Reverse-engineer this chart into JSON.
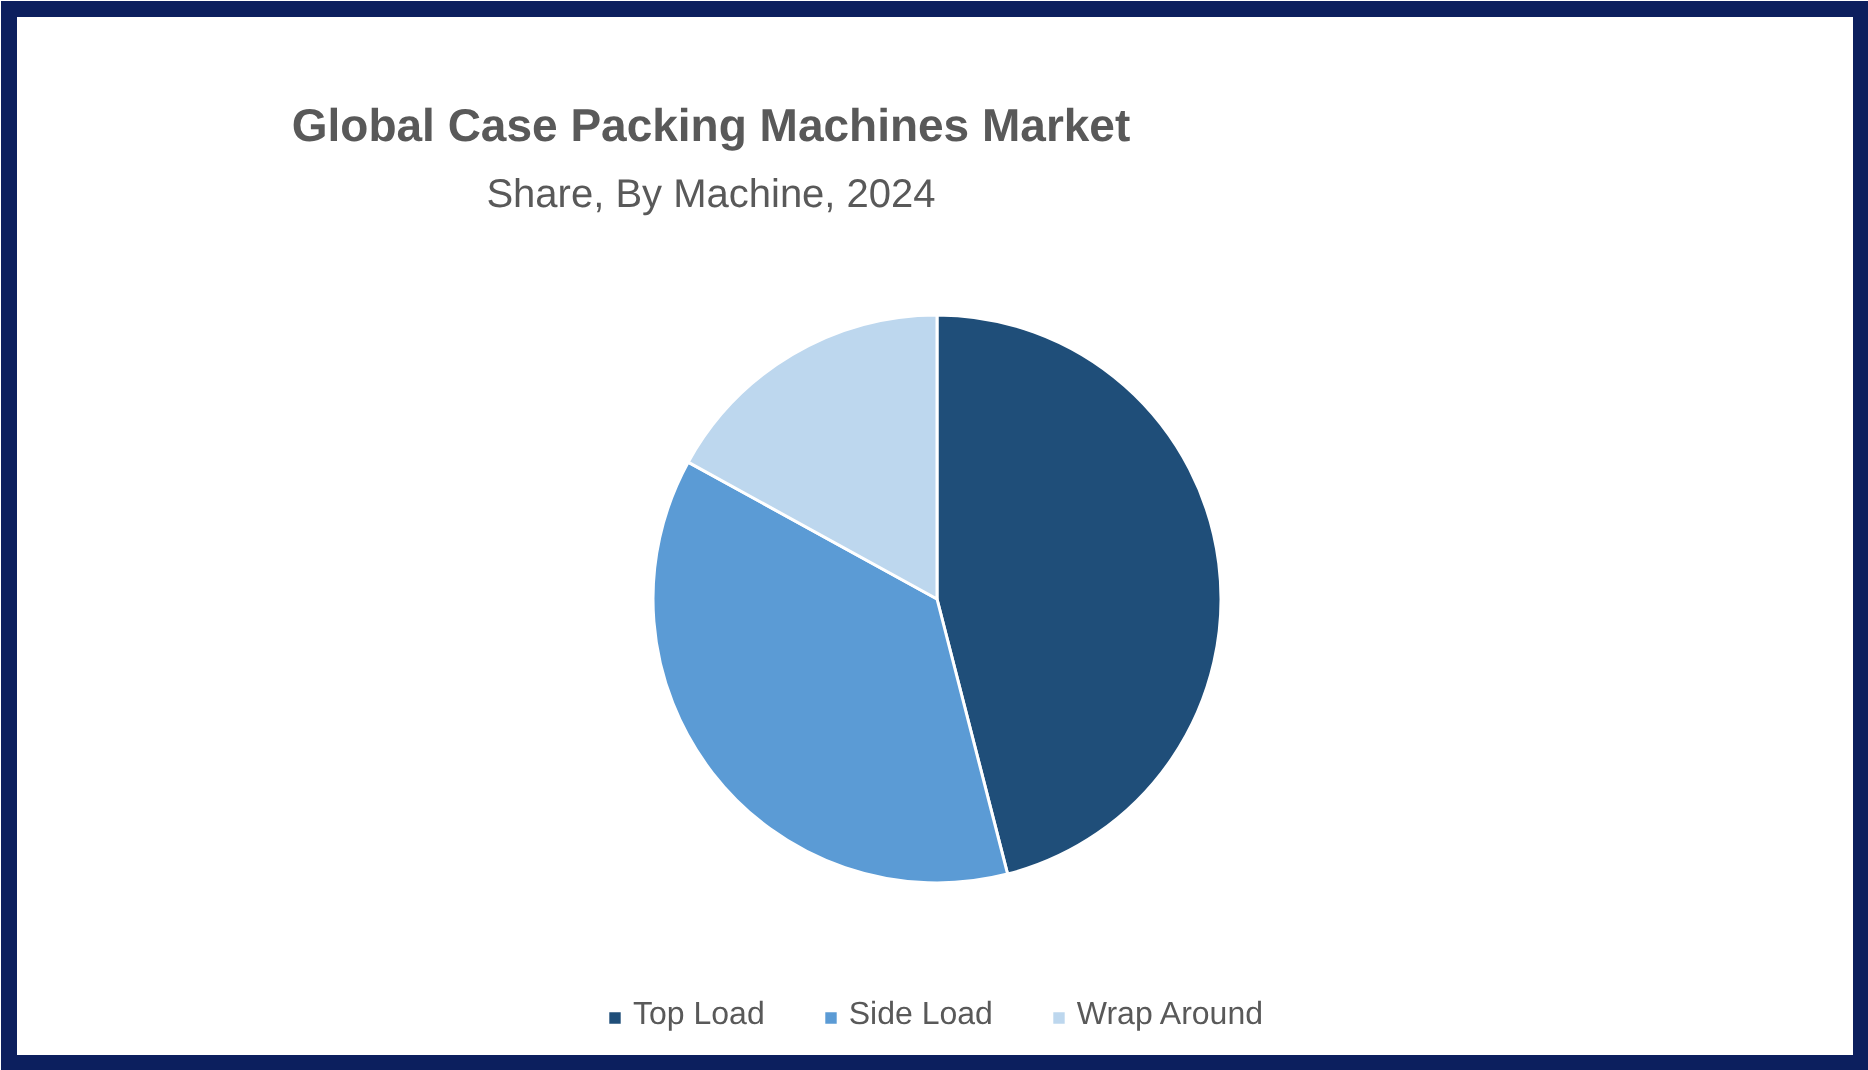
{
  "chart_data": {
    "type": "pie",
    "title": "Global Case Packing Machines Market",
    "subtitle": "Share, By Machine, 2024",
    "categories": [
      "Top Load",
      "Side Load",
      "Wrap Around"
    ],
    "values": [
      46,
      37,
      17
    ],
    "colors": [
      "#1f4e79",
      "#5b9bd5",
      "#bdd7ee"
    ],
    "legend": "bottom"
  }
}
